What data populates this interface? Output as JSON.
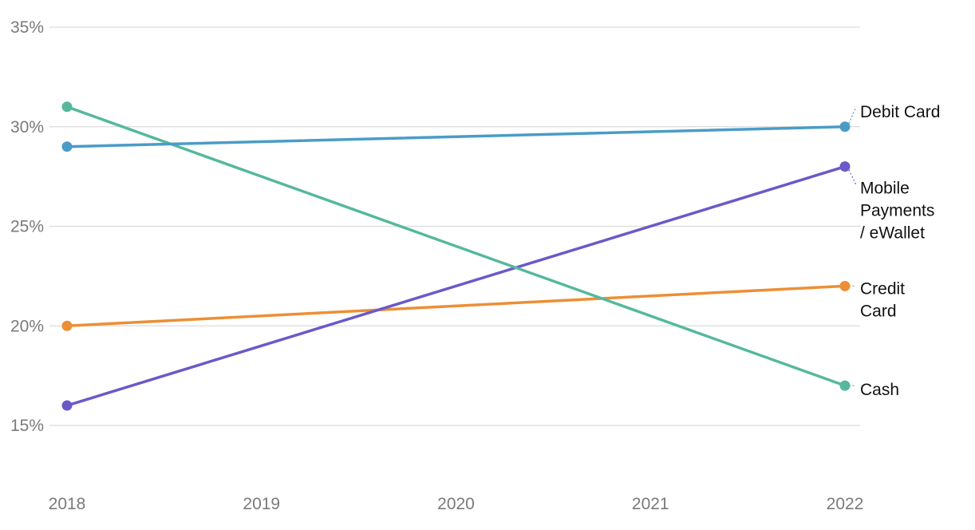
{
  "chart_data": {
    "type": "line",
    "x": [
      "2018",
      "2019",
      "2020",
      "2021",
      "2022"
    ],
    "y_ticks": [
      "15%",
      "20%",
      "25%",
      "30%",
      "35%"
    ],
    "ylim": [
      15,
      35
    ],
    "grid": true,
    "legend": "direct labels at line ends (right)",
    "series": [
      {
        "name": "Debit Card",
        "label_lines": [
          "Debit Card"
        ],
        "color": "#4a9cc7",
        "points": [
          {
            "x": "2018",
            "y": 29
          },
          {
            "x": "2022",
            "y": 30
          }
        ]
      },
      {
        "name": "Mobile Payments / eWallet",
        "label_lines": [
          "Mobile",
          "Payments",
          "/ eWallet"
        ],
        "color": "#6a59c9",
        "points": [
          {
            "x": "2018",
            "y": 16
          },
          {
            "x": "2022",
            "y": 28
          }
        ]
      },
      {
        "name": "Credit Card",
        "label_lines": [
          "Credit",
          "Card"
        ],
        "color": "#ec8f35",
        "points": [
          {
            "x": "2018",
            "y": 20
          },
          {
            "x": "2022",
            "y": 22
          }
        ]
      },
      {
        "name": "Cash",
        "label_lines": [
          "Cash"
        ],
        "color": "#55b89c",
        "points": [
          {
            "x": "2018",
            "y": 31
          },
          {
            "x": "2022",
            "y": 17
          }
        ]
      }
    ]
  }
}
